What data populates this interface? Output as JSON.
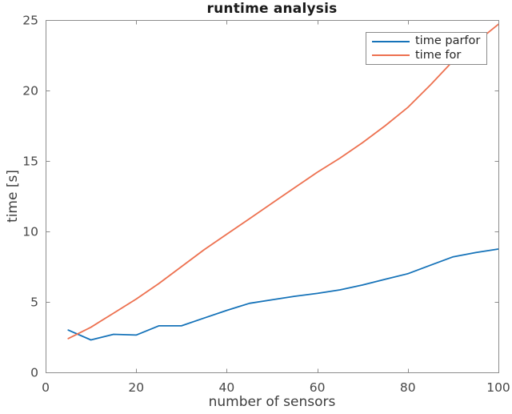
{
  "figure": {
    "title": "runtime analysis",
    "xlabel": "number of sensors",
    "ylabel": "time [s]"
  },
  "chart_data": {
    "type": "line",
    "title": "runtime analysis",
    "xlabel": "number of sensors",
    "ylabel": "time [s]",
    "xlim": [
      0,
      100
    ],
    "ylim": [
      0,
      25
    ],
    "xticks": [
      0,
      20,
      40,
      60,
      80,
      100
    ],
    "yticks": [
      0,
      5,
      10,
      15,
      20,
      25
    ],
    "grid": false,
    "box": true,
    "legend_position": "top-right",
    "axis_color": "#8c8c8c",
    "tick_label_color": "#474747",
    "x": [
      5,
      10,
      15,
      20,
      25,
      30,
      35,
      40,
      45,
      50,
      55,
      60,
      65,
      70,
      75,
      80,
      85,
      90,
      95,
      100
    ],
    "series": [
      {
        "name": "time parfor",
        "color": "#1673b9",
        "values": [
          3.0,
          2.3,
          2.7,
          2.65,
          3.3,
          3.3,
          3.85,
          4.4,
          4.9,
          5.15,
          5.4,
          5.6,
          5.85,
          6.2,
          6.6,
          7.0,
          7.6,
          8.2,
          8.5,
          8.75
        ]
      },
      {
        "name": "time for",
        "color": "#ed7150",
        "values": [
          2.4,
          3.2,
          4.2,
          5.2,
          6.3,
          7.5,
          8.7,
          9.8,
          10.9,
          12.0,
          13.1,
          14.2,
          15.2,
          16.3,
          17.5,
          18.8,
          20.4,
          22.1,
          23.4,
          24.7
        ]
      }
    ]
  }
}
